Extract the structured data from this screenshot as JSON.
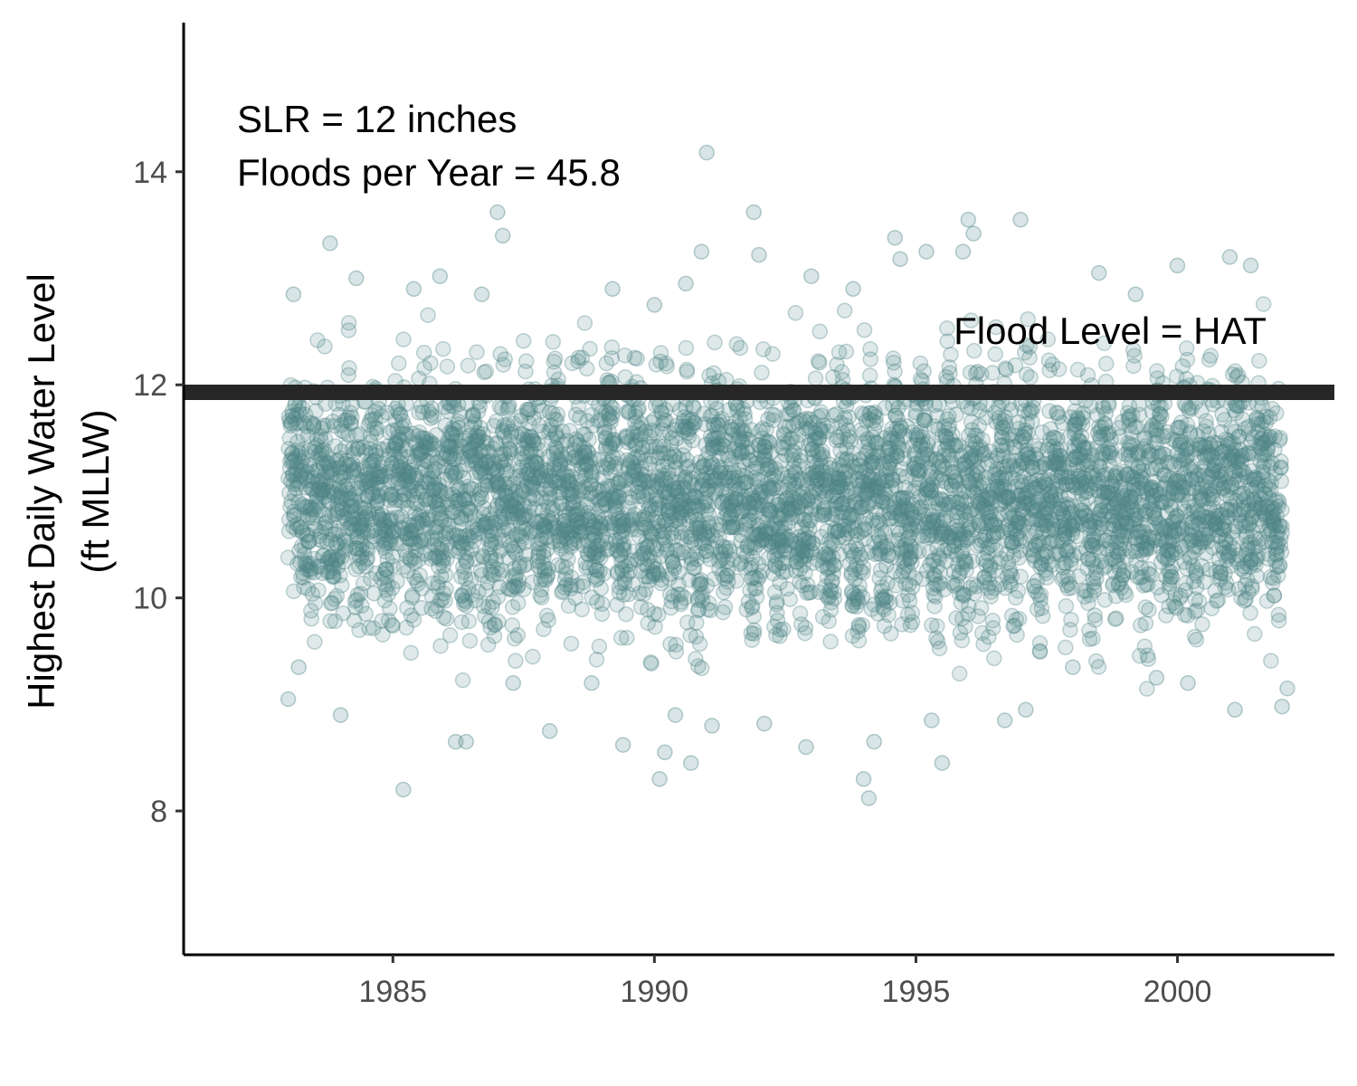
{
  "chart_data": {
    "type": "scatter",
    "title": "",
    "xlabel": "",
    "ylabel_lines": [
      "Highest Daily Water Level",
      "(ft MLLW)"
    ],
    "xlim": [
      1981,
      2003
    ],
    "ylim": [
      6.65,
      15.4
    ],
    "x_ticks": [
      1985,
      1990,
      1995,
      2000
    ],
    "y_ticks": [
      8,
      10,
      12,
      14
    ],
    "grid": false,
    "legend": "none",
    "colors": {
      "points": "#4f8587",
      "flood_line": "#262626",
      "axis": "#000000"
    },
    "flood_level": {
      "y": 11.93,
      "label": "Flood Level = HAT"
    },
    "annotations": [
      "SLR = 12 inches",
      "Floods per Year = 45.8"
    ],
    "series": {
      "name": "",
      "description_of_distribution": "Highest daily water levels from 1983 through 2002",
      "x_start": 1983.0,
      "x_end": 2002.0,
      "y_core_range": [
        9.7,
        12.2
      ],
      "y_extremes_range": [
        8.1,
        14.2
      ],
      "sampled_points": [
        [
          1983.0,
          9.05
        ],
        [
          1983.1,
          12.85
        ],
        [
          1983.2,
          9.35
        ],
        [
          1983.8,
          13.33
        ],
        [
          1984.0,
          8.9
        ],
        [
          1984.3,
          13.0
        ],
        [
          1985.2,
          8.2
        ],
        [
          1985.4,
          12.9
        ],
        [
          1985.9,
          13.02
        ],
        [
          1986.2,
          8.65
        ],
        [
          1986.4,
          8.65
        ],
        [
          1986.7,
          12.85
        ],
        [
          1987.0,
          13.62
        ],
        [
          1987.1,
          13.4
        ],
        [
          1987.3,
          9.2
        ],
        [
          1988.0,
          8.75
        ],
        [
          1988.8,
          9.2
        ],
        [
          1989.2,
          12.9
        ],
        [
          1989.4,
          8.62
        ],
        [
          1990.0,
          12.75
        ],
        [
          1990.1,
          8.3
        ],
        [
          1990.2,
          8.55
        ],
        [
          1990.4,
          8.9
        ],
        [
          1990.6,
          12.95
        ],
        [
          1990.7,
          8.45
        ],
        [
          1990.9,
          13.25
        ],
        [
          1991.0,
          14.18
        ],
        [
          1991.1,
          8.8
        ],
        [
          1991.9,
          13.62
        ],
        [
          1992.0,
          13.22
        ],
        [
          1992.1,
          8.82
        ],
        [
          1992.9,
          8.6
        ],
        [
          1993.0,
          13.02
        ],
        [
          1993.8,
          12.9
        ],
        [
          1994.0,
          8.3
        ],
        [
          1994.1,
          8.12
        ],
        [
          1994.2,
          8.65
        ],
        [
          1994.6,
          13.38
        ],
        [
          1994.7,
          13.18
        ],
        [
          1995.2,
          13.25
        ],
        [
          1995.3,
          8.85
        ],
        [
          1995.5,
          8.45
        ],
        [
          1995.9,
          13.25
        ],
        [
          1996.0,
          13.55
        ],
        [
          1996.1,
          13.42
        ],
        [
          1996.7,
          8.85
        ],
        [
          1997.0,
          13.55
        ],
        [
          1997.1,
          8.95
        ],
        [
          1998.0,
          9.35
        ],
        [
          1998.5,
          13.05
        ],
        [
          1999.2,
          12.85
        ],
        [
          1999.6,
          9.25
        ],
        [
          2000.0,
          13.12
        ],
        [
          2000.2,
          9.2
        ],
        [
          2001.0,
          13.2
        ],
        [
          2001.1,
          8.95
        ],
        [
          2001.4,
          13.12
        ],
        [
          2002.0,
          8.98
        ],
        [
          2002.1,
          9.15
        ]
      ]
    }
  }
}
